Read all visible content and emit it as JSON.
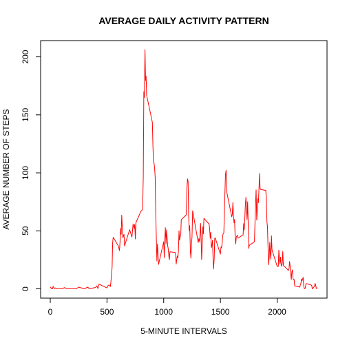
{
  "chart_data": {
    "type": "line",
    "title": "AVERAGE DAILY ACTIVITY PATTERN",
    "xlabel": "5-MINUTE INTERVALS",
    "ylabel": "AVERAGE NUMBER OF STEPS",
    "xlim": [
      -85,
      2440
    ],
    "ylim": [
      -8,
      214
    ],
    "x_ticks": [
      0,
      500,
      1000,
      1500,
      2000
    ],
    "y_ticks": [
      0,
      50,
      100,
      150,
      200
    ],
    "grid": false,
    "legend": "none",
    "series": [
      {
        "color": "#ff0000",
        "points": [
          [
            0,
            1.7
          ],
          [
            10,
            0.1
          ],
          [
            20,
            0.1
          ],
          [
            25,
            2.1
          ],
          [
            35,
            0.3
          ],
          [
            45,
            0.8
          ],
          [
            55,
            0.1
          ],
          [
            100,
            0.3
          ],
          [
            110,
            0.2
          ],
          [
            125,
            1.1
          ],
          [
            140,
            0.2
          ],
          [
            155,
            0.0
          ],
          [
            205,
            0.0
          ],
          [
            230,
            0.0
          ],
          [
            250,
            1.5
          ],
          [
            300,
            0.0
          ],
          [
            330,
            1.5
          ],
          [
            345,
            0.1
          ],
          [
            400,
            1.2
          ],
          [
            410,
            2.6
          ],
          [
            420,
            0.3
          ],
          [
            430,
            4.1
          ],
          [
            440,
            3.5
          ],
          [
            450,
            3.1
          ],
          [
            500,
            0.8
          ],
          [
            510,
            3.0
          ],
          [
            520,
            3.3
          ],
          [
            530,
            2.0
          ],
          [
            535,
            6.1
          ],
          [
            545,
            18.3
          ],
          [
            550,
            39.5
          ],
          [
            555,
            44.5
          ],
          [
            600,
            37.0
          ],
          [
            610,
            33.0
          ],
          [
            615,
            40.0
          ],
          [
            620,
            52.0
          ],
          [
            625,
            47.0
          ],
          [
            630,
            63.5
          ],
          [
            640,
            44.0
          ],
          [
            650,
            47.0
          ],
          [
            655,
            37.0
          ],
          [
            700,
            51.0
          ],
          [
            720,
            44.6
          ],
          [
            725,
            50.0
          ],
          [
            730,
            56.0
          ],
          [
            740,
            52.0
          ],
          [
            745,
            55.5
          ],
          [
            750,
            43.0
          ],
          [
            755,
            57.0
          ],
          [
            800,
            67.0
          ],
          [
            810,
            68.0
          ],
          [
            815,
            72.0
          ],
          [
            820,
            97.6
          ],
          [
            825,
            170.0
          ],
          [
            830,
            165.0
          ],
          [
            835,
            206.2
          ],
          [
            840,
            179.6
          ],
          [
            845,
            183.4
          ],
          [
            850,
            167.0
          ],
          [
            900,
            143.5
          ],
          [
            905,
            124.0
          ],
          [
            910,
            109.0
          ],
          [
            915,
            108.1
          ],
          [
            920,
            103.7
          ],
          [
            925,
            96.0
          ],
          [
            930,
            66.2
          ],
          [
            935,
            45.0
          ],
          [
            940,
            24.0
          ],
          [
            945,
            38.8
          ],
          [
            955,
            21.1
          ],
          [
            1000,
            40.6
          ],
          [
            1005,
            26.9
          ],
          [
            1010,
            42.4
          ],
          [
            1015,
            52.7
          ],
          [
            1020,
            38.9
          ],
          [
            1025,
            50.8
          ],
          [
            1030,
            44.3
          ],
          [
            1035,
            37.4
          ],
          [
            1040,
            34.7
          ],
          [
            1045,
            28.3
          ],
          [
            1050,
            25.1
          ],
          [
            1055,
            31.9
          ],
          [
            1100,
            31.4
          ],
          [
            1105,
            29.7
          ],
          [
            1110,
            21.3
          ],
          [
            1115,
            25.5
          ],
          [
            1120,
            28.4
          ],
          [
            1125,
            26.5
          ],
          [
            1130,
            33.4
          ],
          [
            1135,
            50.0
          ],
          [
            1140,
            42.0
          ],
          [
            1145,
            44.6
          ],
          [
            1150,
            46.0
          ],
          [
            1155,
            59.6
          ],
          [
            1200,
            63.9
          ],
          [
            1205,
            87.6
          ],
          [
            1210,
            94.8
          ],
          [
            1215,
            92.8
          ],
          [
            1220,
            63.4
          ],
          [
            1225,
            50.2
          ],
          [
            1230,
            54.5
          ],
          [
            1235,
            32.4
          ],
          [
            1240,
            26.5
          ],
          [
            1245,
            37.7
          ],
          [
            1250,
            45.1
          ],
          [
            1255,
            67.3
          ],
          [
            1300,
            42.3
          ],
          [
            1305,
            39.9
          ],
          [
            1310,
            43.3
          ],
          [
            1315,
            40.9
          ],
          [
            1320,
            46.2
          ],
          [
            1325,
            56.4
          ],
          [
            1330,
            42.8
          ],
          [
            1335,
            25.1
          ],
          [
            1340,
            39.9
          ],
          [
            1345,
            53.5
          ],
          [
            1350,
            47.3
          ],
          [
            1355,
            60.8
          ],
          [
            1400,
            55.8
          ],
          [
            1405,
            51.9
          ],
          [
            1410,
            43.6
          ],
          [
            1415,
            48.7
          ],
          [
            1420,
            35.5
          ],
          [
            1425,
            37.5
          ],
          [
            1430,
            41.8
          ],
          [
            1435,
            27.5
          ],
          [
            1440,
            17.1
          ],
          [
            1445,
            26.1
          ],
          [
            1450,
            43.6
          ],
          [
            1455,
            43.8
          ],
          [
            1500,
            30.0
          ],
          [
            1505,
            36.1
          ],
          [
            1510,
            35.5
          ],
          [
            1515,
            38.8
          ],
          [
            1520,
            45.9
          ],
          [
            1525,
            47.8
          ],
          [
            1530,
            48.1
          ],
          [
            1535,
            65.3
          ],
          [
            1540,
            82.9
          ],
          [
            1545,
            98.7
          ],
          [
            1550,
            102.1
          ],
          [
            1555,
            84.0
          ],
          [
            1600,
            62.1
          ],
          [
            1605,
            64.1
          ],
          [
            1610,
            74.5
          ],
          [
            1615,
            63.2
          ],
          [
            1620,
            56.9
          ],
          [
            1625,
            59.8
          ],
          [
            1630,
            43.9
          ],
          [
            1635,
            38.6
          ],
          [
            1640,
            44.7
          ],
          [
            1645,
            45.5
          ],
          [
            1650,
            46.2
          ],
          [
            1655,
            43.7
          ],
          [
            1700,
            46.6
          ],
          [
            1705,
            56.3
          ],
          [
            1710,
            50.7
          ],
          [
            1715,
            61.2
          ],
          [
            1720,
            72.7
          ],
          [
            1725,
            78.9
          ],
          [
            1730,
            68.9
          ],
          [
            1735,
            59.7
          ],
          [
            1740,
            75.1
          ],
          [
            1745,
            56.5
          ],
          [
            1750,
            34.8
          ],
          [
            1755,
            37.5
          ],
          [
            1800,
            40.7
          ],
          [
            1805,
            58.0
          ],
          [
            1810,
            74.7
          ],
          [
            1815,
            85.3
          ],
          [
            1820,
            59.3
          ],
          [
            1825,
            67.8
          ],
          [
            1830,
            77.7
          ],
          [
            1835,
            74.2
          ],
          [
            1840,
            85.3
          ],
          [
            1845,
            99.5
          ],
          [
            1850,
            86.6
          ],
          [
            1855,
            85.6
          ],
          [
            1900,
            84.9
          ],
          [
            1905,
            77.8
          ],
          [
            1910,
            58.0
          ],
          [
            1915,
            53.4
          ],
          [
            1920,
            36.3
          ],
          [
            1925,
            20.7
          ],
          [
            1930,
            27.4
          ],
          [
            1935,
            40.0
          ],
          [
            1940,
            30.2
          ],
          [
            1945,
            25.5
          ],
          [
            1950,
            45.7
          ],
          [
            1955,
            33.5
          ],
          [
            2000,
            19.6
          ],
          [
            2005,
            19.0
          ],
          [
            2010,
            19.3
          ],
          [
            2015,
            33.3
          ],
          [
            2020,
            26.8
          ],
          [
            2025,
            21.2
          ],
          [
            2030,
            27.3
          ],
          [
            2035,
            21.3
          ],
          [
            2040,
            19.5
          ],
          [
            2045,
            21.3
          ],
          [
            2050,
            32.3
          ],
          [
            2055,
            20.2
          ],
          [
            2100,
            15.9
          ],
          [
            2105,
            17.2
          ],
          [
            2110,
            23.5
          ],
          [
            2115,
            19.2
          ],
          [
            2120,
            12.5
          ],
          [
            2125,
            8.0
          ],
          [
            2130,
            14.7
          ],
          [
            2135,
            16.3
          ],
          [
            2140,
            8.7
          ],
          [
            2145,
            7.8
          ],
          [
            2150,
            8.1
          ],
          [
            2155,
            2.6
          ],
          [
            2200,
            1.5
          ],
          [
            2205,
            3.7
          ],
          [
            2210,
            4.8
          ],
          [
            2215,
            8.5
          ],
          [
            2220,
            7.1
          ],
          [
            2225,
            8.7
          ],
          [
            2230,
            9.8
          ],
          [
            2235,
            2.2
          ],
          [
            2240,
            0.3
          ],
          [
            2245,
            0.1
          ],
          [
            2250,
            1.6
          ],
          [
            2255,
            4.6
          ],
          [
            2300,
            3.3
          ],
          [
            2305,
            2.8
          ],
          [
            2310,
            0.0
          ],
          [
            2315,
            0.8
          ],
          [
            2320,
            1.0
          ],
          [
            2325,
            1.6
          ],
          [
            2330,
            2.6
          ],
          [
            2335,
            4.7
          ],
          [
            2340,
            3.3
          ],
          [
            2345,
            0.6
          ],
          [
            2350,
            0.2
          ],
          [
            2355,
            1.1
          ]
        ]
      }
    ]
  }
}
